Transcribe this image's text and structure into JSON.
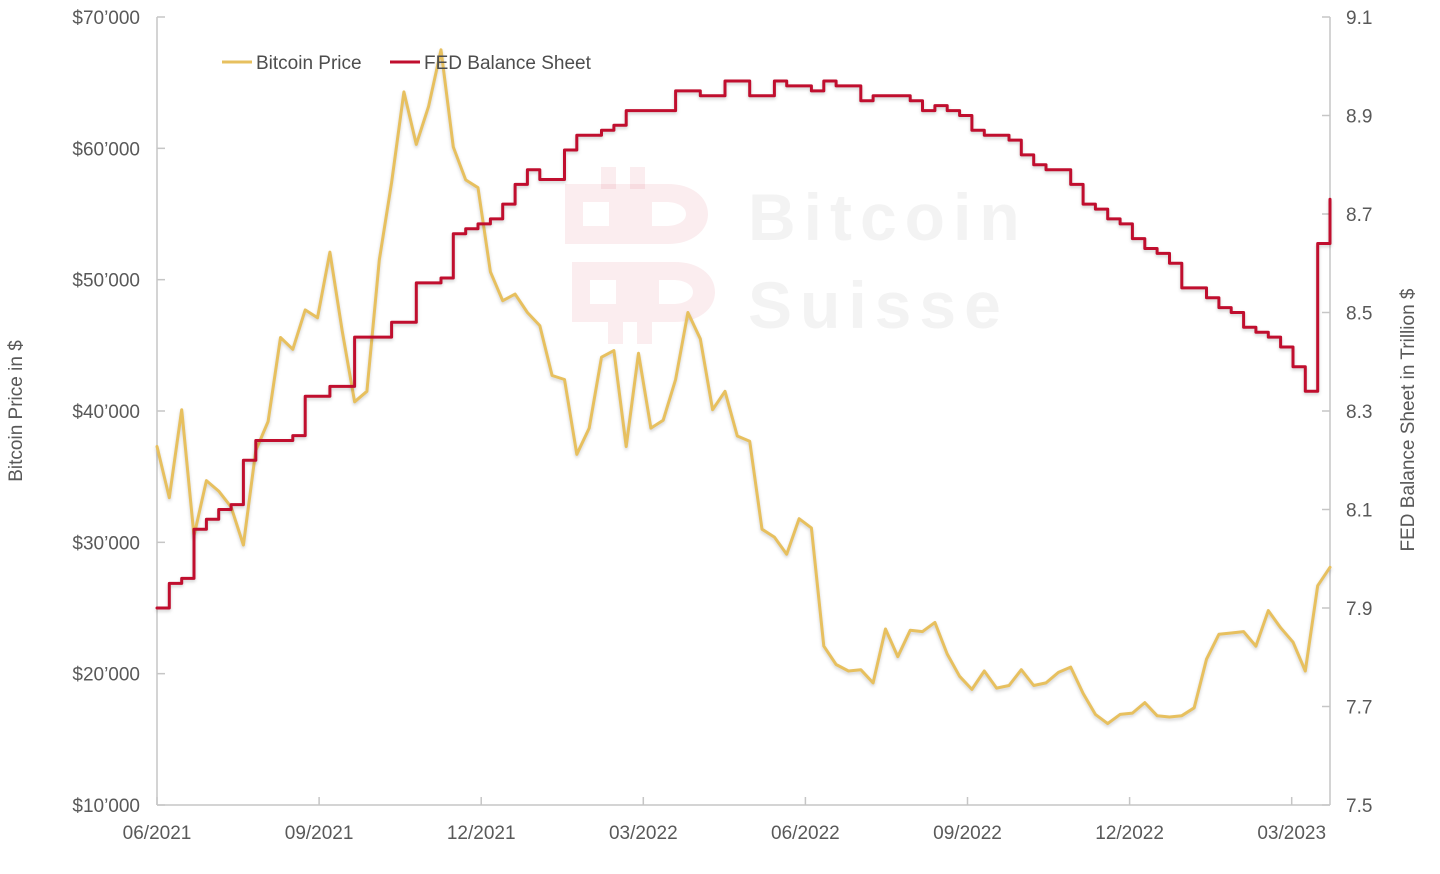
{
  "watermark": {
    "line1": "Bitcoin",
    "line2": "Suisse",
    "logo_name": "bitcoin-suisse-logo"
  },
  "legend": [
    {
      "label": "Bitcoin Price",
      "color": "#E7C05F"
    },
    {
      "label": "FED Balance Sheet",
      "color": "#C00E2E"
    }
  ],
  "left_axis": {
    "title": "Bitcoin Price in $",
    "tick_labels": [
      "$70’000",
      "$60’000",
      "$50’000",
      "$40’000",
      "$30’000",
      "$20’000",
      "$10’000"
    ]
  },
  "right_axis": {
    "title": "FED Balance Sheet in Trillion $",
    "tick_labels": [
      "9.1",
      "8.9",
      "8.7",
      "8.5",
      "8.3",
      "8.1",
      "7.9",
      "7.7",
      "7.5"
    ]
  },
  "x_axis": {
    "tick_labels": [
      "06/2021",
      "09/2021",
      "12/2021",
      "03/2022",
      "06/2022",
      "09/2022",
      "12/2022",
      "03/2023"
    ]
  },
  "chart_data": {
    "type": "line",
    "title": "",
    "x_label": "",
    "x_range": "weekly data points from 06/2021 to 03/2023",
    "x_tick_labels": [
      "06/2021",
      "09/2021",
      "12/2021",
      "03/2022",
      "06/2022",
      "09/2022",
      "12/2022",
      "03/2023"
    ],
    "left_ylabel": "Bitcoin Price in $",
    "right_ylabel": "FED Balance Sheet in Trillion $",
    "left_ylim": [
      10000,
      70000
    ],
    "right_ylim": [
      7.5,
      9.1
    ],
    "grid": false,
    "legend_position": "top-left-inside",
    "series": [
      {
        "name": "Bitcoin Price",
        "axis": "left",
        "color": "#E7C05F",
        "interpolation": "linear",
        "unit": "USD",
        "values": [
          37300,
          33400,
          40100,
          30500,
          34700,
          33900,
          32700,
          29800,
          37000,
          39200,
          45600,
          44700,
          47700,
          47100,
          52100,
          46100,
          40700,
          41500,
          51500,
          57400,
          64300,
          60300,
          63200,
          67500,
          60100,
          57600,
          57000,
          50600,
          48400,
          48900,
          47500,
          46500,
          42700,
          42400,
          36700,
          38700,
          44100,
          44600,
          37300,
          44400,
          38700,
          39300,
          42400,
          47500,
          45500,
          40100,
          41500,
          38100,
          37700,
          31000,
          30400,
          29100,
          31800,
          31100,
          22100,
          20700,
          20200,
          20300,
          19300,
          23400,
          21300,
          23300,
          23200,
          23900,
          21500,
          19800,
          18800,
          20200,
          18900,
          19100,
          20300,
          19100,
          19300,
          20100,
          20500,
          18500,
          16900,
          16200,
          16900,
          17000,
          17800,
          16800,
          16700,
          16800,
          17400,
          21100,
          23000,
          23100,
          23200,
          22100,
          24800,
          23500,
          22400,
          20200,
          26700,
          28100
        ]
      },
      {
        "name": "FED Balance Sheet",
        "axis": "right",
        "color": "#C00E2E",
        "interpolation": "step",
        "unit": "Trillion USD",
        "values": [
          7.9,
          7.95,
          7.96,
          8.06,
          8.08,
          8.1,
          8.11,
          8.2,
          8.24,
          8.24,
          8.24,
          8.25,
          8.33,
          8.33,
          8.35,
          8.35,
          8.45,
          8.45,
          8.45,
          8.48,
          8.48,
          8.56,
          8.56,
          8.57,
          8.66,
          8.67,
          8.68,
          8.69,
          8.72,
          8.76,
          8.79,
          8.77,
          8.77,
          8.83,
          8.86,
          8.86,
          8.87,
          8.88,
          8.91,
          8.91,
          8.91,
          8.91,
          8.95,
          8.95,
          8.94,
          8.94,
          8.97,
          8.97,
          8.94,
          8.94,
          8.97,
          8.96,
          8.96,
          8.95,
          8.97,
          8.96,
          8.96,
          8.93,
          8.94,
          8.94,
          8.94,
          8.93,
          8.91,
          8.92,
          8.91,
          8.9,
          8.87,
          8.86,
          8.86,
          8.85,
          8.82,
          8.8,
          8.79,
          8.79,
          8.76,
          8.72,
          8.71,
          8.69,
          8.68,
          8.65,
          8.63,
          8.62,
          8.6,
          8.55,
          8.55,
          8.53,
          8.51,
          8.5,
          8.47,
          8.46,
          8.45,
          8.43,
          8.39,
          8.34,
          8.64,
          8.73
        ]
      }
    ]
  },
  "colors": {
    "background": "#ffffff",
    "axis_line": "#c6c6c6",
    "tick_text": "#595959",
    "watermark_mark": "#C8102E"
  }
}
